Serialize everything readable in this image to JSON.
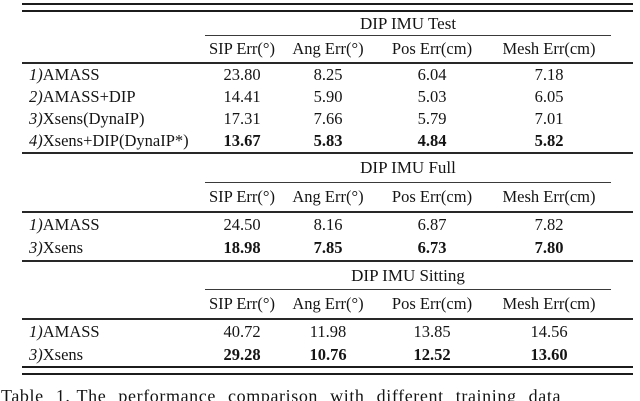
{
  "page": {
    "background": "#ffffff",
    "text_color": "#141414",
    "rule_color": "#1c1c1c"
  },
  "columns": [
    "SIP Err(°)",
    "Ang Err(°)",
    "Pos Err(cm)",
    "Mesh Err(cm)"
  ],
  "tables": [
    {
      "title": "DIP IMU Test",
      "rows": [
        {
          "num": "1)",
          "name": "AMASS",
          "sip": "23.80",
          "ang": "8.25",
          "pos": "6.04",
          "mesh": "7.18"
        },
        {
          "num": "2)",
          "name": "AMASS+DIP",
          "sip": "14.41",
          "ang": "5.90",
          "pos": "5.03",
          "mesh": "6.05"
        },
        {
          "num": "3)",
          "name": "Xsens(DynaIP)",
          "sip": "17.31",
          "ang": "7.66",
          "pos": "5.79",
          "mesh": "7.01"
        },
        {
          "num": "4)",
          "name": "Xsens+DIP(DynaIP*)",
          "sip": "13.67",
          "ang": "5.83",
          "pos": "4.84",
          "mesh": "5.82"
        }
      ]
    },
    {
      "title": "DIP IMU Full",
      "rows": [
        {
          "num": "1)",
          "name": "AMASS",
          "sip": "24.50",
          "ang": "8.16",
          "pos": "6.87",
          "mesh": "7.82"
        },
        {
          "num": "3)",
          "name": "Xsens",
          "sip": "18.98",
          "ang": "7.85",
          "pos": "6.73",
          "mesh": "7.80"
        }
      ]
    },
    {
      "title": "DIP IMU Sitting",
      "rows": [
        {
          "num": "1)",
          "name": "AMASS",
          "sip": "40.72",
          "ang": "11.98",
          "pos": "13.85",
          "mesh": "14.56"
        },
        {
          "num": "3)",
          "name": "Xsens",
          "sip": "29.28",
          "ang": "10.76",
          "pos": "12.52",
          "mesh": "13.60"
        }
      ]
    }
  ],
  "caption": {
    "label": "Table 1.",
    "text": "The performance comparison with different training data"
  }
}
